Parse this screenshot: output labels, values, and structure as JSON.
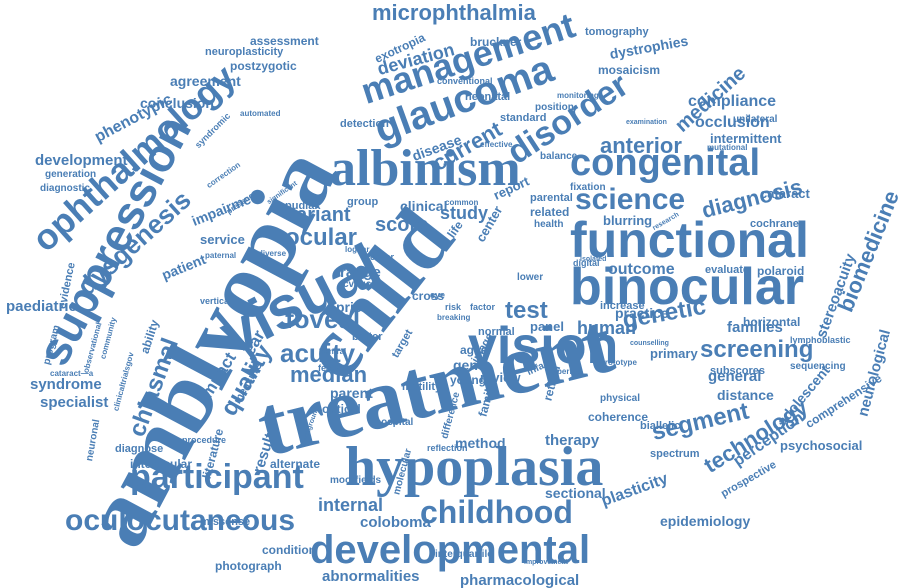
{
  "colors": {
    "word": "#4a7eb5",
    "background": "#ffffff"
  },
  "words": {
    "amblyopia": "amblyopia",
    "treatment": "treatment",
    "child": "child",
    "visual": "visual",
    "functional": "functional",
    "binocular": "binocular",
    "hypoplasia": "hypoplasia",
    "albinism": "albinism",
    "congenital": "congenital",
    "vision": "vision",
    "developmental": "developmental",
    "suppression": "suppression",
    "ophthalmology": "ophthalmology",
    "glaucoma": "glaucoma",
    "management": "management",
    "disorder": "disorder",
    "science": "science",
    "childhood": "childhood",
    "participant": "participant",
    "oculocutaneous": "oculocutaneous",
    "microphthalmia": "microphthalmia",
    "dysgenesis": "dysgenesis",
    "screening": "screening",
    "segment": "segment",
    "genetic": "genetic",
    "ocular": "ocular",
    "acuity": "acuity",
    "foveal": "foveal",
    "diagnosis": "diagnosis",
    "technology": "technology",
    "biomedicine": "biomedicine",
    "chiasmal": "chiasmal",
    "quality": "quality",
    "variant": "variant",
    "score": "score",
    "median": "median",
    "test": "test",
    "anterior": "anterior",
    "medicine": "medicine",
    "outcome": "outcome",
    "deviation": "deviation",
    "current": "current",
    "phenotypic": "phenotypic",
    "development": "development",
    "conclusion": "conclusion",
    "agreement": "agreement",
    "paediatric": "paediatric",
    "syndrome": "syndrome",
    "specialist": "specialist",
    "internal": "internal",
    "coloboma": "coloboma",
    "abnormalities": "abnormalities",
    "pharmacological": "pharmacological",
    "epidemiology": "epidemiology",
    "plasticity": "plasticity",
    "perception": "perception",
    "compliance": "compliance",
    "occlusion": "occlusion",
    "intermittent": "intermittent",
    "stereoacuity": "stereoacuity",
    "neurological": "neurological",
    "human": "human",
    "families": "families",
    "general": "general",
    "distance": "distance",
    "patient": "patient",
    "study": "study",
    "clinical": "clinical",
    "range": "range",
    "result": "result",
    "impairment": "impairment",
    "dystrophies": "dystrophies",
    "exotropia": "exotropia",
    "assessment": "assessment",
    "neuroplasticity": "neuroplasticity",
    "postzygotic": "postzygotic",
    "tomography": "tomography",
    "bruckner": "bruckner",
    "mosaicism": "mosaicism",
    "cataract": "cataract",
    "cochrane": "cochrane",
    "polaroid": "polaroid",
    "evaluate": "evaluate",
    "horizontal": "horizontal",
    "primary": "primary",
    "subscores": "subscores",
    "sequencing": "sequencing",
    "lymphoblastic": "lymphoblastic",
    "adolescent": "adolescent",
    "comprehensive": "comprehensive",
    "psychosocial": "psychosocial",
    "biallelic": "biallelic",
    "spectrum": "spectrum",
    "prospective": "prospective",
    "therapy": "therapy",
    "sectional": "sectional",
    "method": "method",
    "review": "review",
    "young": "young",
    "gene": "gene",
    "prism": "prism",
    "parent": "parent",
    "optical": "optical",
    "impact": "impact",
    "ear": "ear",
    "alternate": "alternate",
    "interocular": "interocular",
    "diagnose": "diagnose",
    "missense": "missense",
    "condition": "condition",
    "photograph": "photograph",
    "moorfields": "moorfields",
    "interquartile": "interquartile",
    "service": "service",
    "ability": "ability",
    "evidence": "evidence",
    "program": "program",
    "diagnostic": "diagnostic",
    "generation": "generation",
    "practice": "practice",
    "increase": "increase",
    "panel": "panel",
    "blurring": "blurring",
    "fixation": "fixation",
    "related": "related",
    "parental": "parental",
    "report": "report",
    "standard": "standard",
    "neonatal": "neonatal",
    "position": "position",
    "detection": "detection",
    "disease": "disease",
    "group": "group",
    "pudlak": "pudlak",
    "center": "center",
    "life": "life",
    "cross": "cross",
    "better": "better",
    "feature": "feature",
    "cvaqc": "cvaqc",
    "target": "target",
    "aged": "aged",
    "normal": "normal",
    "image": "image",
    "motility": "motility",
    "family": "family",
    "hospital": "hospital",
    "difference": "difference",
    "reflection": "reflection",
    "coherence": "coherence",
    "physical": "physical",
    "retinal": "retinal",
    "literature": "literature",
    "procedure": "procedure",
    "neuronal": "neuronal",
    "lower": "lower",
    "digital": "digital",
    "infant": "infant",
    "health": "health",
    "molecular": "molecular",
    "conventional": "conventional",
    "unilateral": "unilateral",
    "syndromic": "syndromic",
    "automated": "automated",
    "mutational": "mutational",
    "examination": "examination",
    "monitoring": "monitoring",
    "balance": "balance",
    "effective": "effective",
    "vertical": "vertical",
    "paternal": "paternal",
    "diverse": "diverse",
    "cover": "cover",
    "observational": "observational",
    "community": "community",
    "cataract_a": "cataract—a",
    "clinicaltrialsgov": "clinicaltrialsgov",
    "lognar": "lognar",
    "risk": "risk",
    "eye": "eye",
    "factor": "factor",
    "central": "central",
    "breaking": "breaking",
    "improvement": "improvement",
    "background": "background",
    "prototype": "prototype",
    "period": "period",
    "counselling": "counselling",
    "research": "research",
    "isolated": "isolated",
    "common": "common",
    "correction": "correction",
    "presence": "presence",
    "significant": "significant",
    "measure": "measure",
    "vision2": "vision"
  }
}
